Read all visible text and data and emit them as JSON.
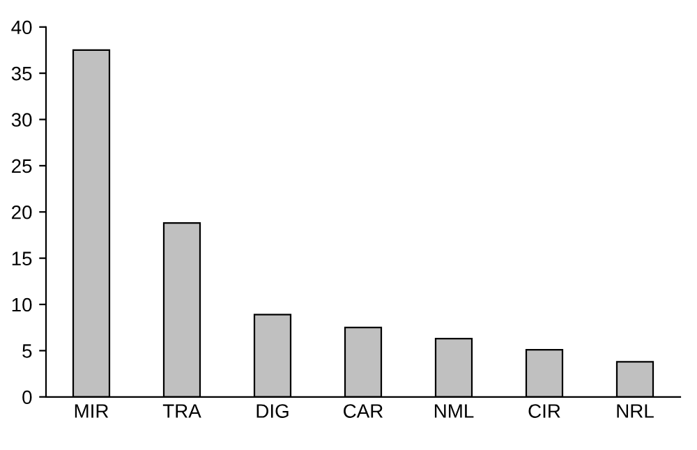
{
  "chart_data": {
    "type": "bar",
    "categories": [
      "MIR",
      "TRA",
      "DIG",
      "CAR",
      "NML",
      "CIR",
      "NRL"
    ],
    "values": [
      37.5,
      18.8,
      8.9,
      7.5,
      6.3,
      5.1,
      3.8
    ],
    "color": "#c0c0c0",
    "ylim": [
      0,
      40
    ],
    "yticks": [
      0,
      5,
      10,
      15,
      20,
      25,
      30,
      35,
      40
    ],
    "grid": false,
    "legend": false
  }
}
